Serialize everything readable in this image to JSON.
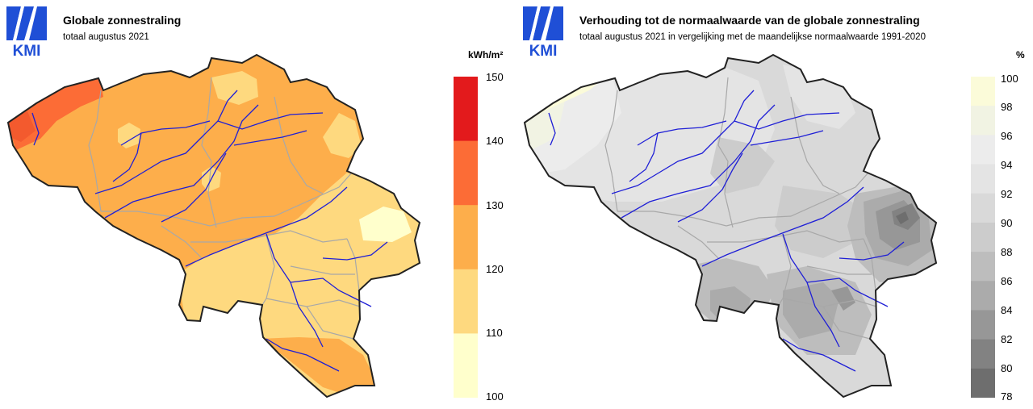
{
  "left_panel": {
    "logo_text": "KMI",
    "title": "Globale zonnestraling",
    "subtitle": "totaal augustus 2021",
    "unit": "kWh/m²",
    "legend": {
      "ticks": [
        "150",
        "140",
        "130",
        "120",
        "110",
        "100"
      ],
      "bins": [
        {
          "range": "140-150",
          "color": "#e31a1c"
        },
        {
          "range": "130-140",
          "color": "#fc6c36"
        },
        {
          "range": "120-130",
          "color": "#fdae4b"
        },
        {
          "range": "110-120",
          "color": "#fed97f"
        },
        {
          "range": "100-110",
          "color": "#ffffcc"
        }
      ]
    }
  },
  "right_panel": {
    "logo_text": "KMI",
    "title": "Verhouding tot de normaalwaarde van de globale zonnestraling",
    "subtitle": "totaal augustus 2021 in vergelijking met de maandelijkse normaalwaarde 1991-2020",
    "unit": "%",
    "legend": {
      "ticks": [
        "100",
        "98",
        "96",
        "94",
        "92",
        "90",
        "88",
        "86",
        "84",
        "82",
        "80",
        "78"
      ],
      "bins": [
        {
          "range": "98-100",
          "color": "#fbfbd9"
        },
        {
          "range": "96-98",
          "color": "#f1f3e3"
        },
        {
          "range": "94-96",
          "color": "#ececec"
        },
        {
          "range": "92-94",
          "color": "#e4e4e4"
        },
        {
          "range": "90-92",
          "color": "#d9d9d9"
        },
        {
          "range": "88-90",
          "color": "#cccccc"
        },
        {
          "range": "86-88",
          "color": "#bdbdbd"
        },
        {
          "range": "84-86",
          "color": "#ababab"
        },
        {
          "range": "82-84",
          "color": "#979797"
        },
        {
          "range": "80-82",
          "color": "#828282"
        },
        {
          "range": "78-80",
          "color": "#6e6e6e"
        }
      ]
    }
  },
  "colors": {
    "border": "#222222",
    "rivers": "#1f1fd6",
    "provinces": "#a8a8a8",
    "logo_blue": "#1f4fd6"
  }
}
